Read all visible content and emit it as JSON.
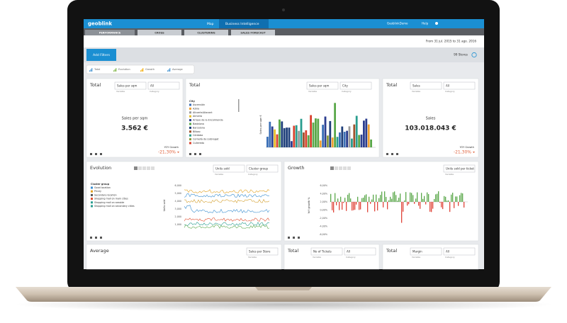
{
  "nav": {
    "logo": "geoblink",
    "map": "Map",
    "bi": "Business Intelligence",
    "user": "GeoblinkDemo",
    "help": "Help"
  },
  "tabs": [
    "PERFORMANCE",
    "CROSS",
    "CLUSTERING",
    "SALES FORECAST"
  ],
  "date_range": "From 31 jul. 2015 to 31 ago. 2016",
  "filters": {
    "button": "Add Filters",
    "stores": "99 Stores"
  },
  "widget_legend": [
    "Total",
    "Evolution",
    "Growth",
    "Average"
  ],
  "cards": [
    {
      "title": "Total",
      "selects": [
        {
          "value": "Sales per sqm",
          "label": "Variable"
        },
        {
          "value": "All",
          "label": "Category"
        }
      ],
      "metric": "Sales per sqm",
      "value": "3.562 €",
      "yoy_label": "YOY Growth",
      "yoy": "-21,30%"
    },
    {
      "title": "Total",
      "selects": [
        {
          "value": "Sales per sqm",
          "label": "Variable"
        },
        {
          "value": "City",
          "label": "Category"
        }
      ],
      "legend_title": "City",
      "legend": [
        "Ascensión",
        "Azkia",
        "Alicante/Alacant",
        "Almería",
        "Arroyo de la Encomienda",
        "Badalona",
        "Barcelona",
        "Bilbao",
        "Córdoba",
        "Cornellà de Llobregat",
        "Culleredo"
      ],
      "y_label": "Sales per sqm €"
    },
    {
      "title": "Total",
      "selects": [
        {
          "value": "Sales",
          "label": "Variable"
        },
        {
          "value": "All",
          "label": "Category"
        }
      ],
      "metric": "Sales",
      "value": "103.018.043 €",
      "yoy_label": "YOY Growth",
      "yoy": "-21,30%"
    },
    {
      "title": "Evolution",
      "selects": [
        {
          "value": "Units sold",
          "label": "Variable"
        },
        {
          "value": "Cluster group",
          "label": "Category"
        }
      ],
      "legend_title": "Cluster group",
      "legend": [
        "Good location",
        "Pricey",
        "Secondary location",
        "Shopping mall on main cities",
        "Shopping mall on seaside",
        "Shopping mall on secondary cities"
      ],
      "y_label": "Units sold",
      "yticks": [
        "6,000",
        "5,000",
        "4,000",
        "3,000",
        "2,000",
        "1,000"
      ]
    },
    {
      "title": "Growth",
      "selects": [
        {
          "value": "Units sold per ticket",
          "label": "Variable"
        }
      ],
      "y_label": "YoY growth %",
      "yticks": [
        "6,00%",
        "4,00%",
        "2,00%",
        "0,00%",
        "-2,00%",
        "-4,00%",
        "-6,00%"
      ]
    },
    {
      "title": "Average",
      "selects": [
        {
          "value": "Sales per Store",
          "label": "Variable"
        }
      ]
    },
    {
      "title": "Total",
      "selects": [
        {
          "value": "No of Tickets",
          "label": "Variable"
        },
        {
          "value": "All",
          "label": "Category"
        }
      ]
    },
    {
      "title": "Total",
      "selects": [
        {
          "value": "Margin",
          "label": "Variable"
        },
        {
          "value": "All",
          "label": "Category"
        }
      ]
    }
  ]
}
